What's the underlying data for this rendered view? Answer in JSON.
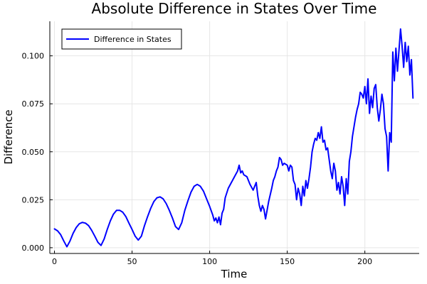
{
  "chart_data": {
    "type": "line",
    "title": "Absolute Difference in States Over Time",
    "xlabel": "Time",
    "ylabel": "Difference",
    "xlim": [
      -3,
      235
    ],
    "ylim": [
      -0.003,
      0.118
    ],
    "xticks": [
      0,
      50,
      100,
      150,
      200
    ],
    "xtick_labels": [
      "0",
      "50",
      "100",
      "150",
      "200"
    ],
    "yticks": [
      0.0,
      0.025,
      0.05,
      0.075,
      0.1
    ],
    "ytick_labels": [
      "0.000",
      "0.025",
      "0.050",
      "0.075",
      "0.100"
    ],
    "grid": true,
    "legend_position": "top-left",
    "series": [
      {
        "name": "Difference in States",
        "color": "#0000ff",
        "x": [
          0,
          2,
          4,
          6,
          8,
          10,
          12,
          14,
          16,
          18,
          20,
          22,
          24,
          26,
          28,
          30,
          32,
          34,
          36,
          38,
          40,
          42,
          44,
          46,
          48,
          50,
          52,
          54,
          56,
          58,
          60,
          62,
          64,
          66,
          68,
          70,
          72,
          74,
          76,
          78,
          80,
          82,
          84,
          86,
          88,
          90,
          92,
          94,
          96,
          98,
          100,
          102,
          103,
          104,
          105,
          106,
          107,
          108,
          109,
          110,
          112,
          114,
          116,
          118,
          119,
          120,
          121,
          122,
          124,
          126,
          128,
          129,
          130,
          131,
          132,
          133,
          134,
          135,
          136,
          138,
          140,
          141,
          142,
          143,
          144,
          145,
          146,
          147,
          148,
          150,
          151,
          152,
          153,
          154,
          155,
          156,
          157,
          158,
          159,
          160,
          161,
          162,
          163,
          164,
          165,
          166,
          167,
          168,
          169,
          170,
          171,
          172,
          173,
          174,
          175,
          176,
          177,
          178,
          179,
          180,
          181,
          182,
          183,
          184,
          185,
          186,
          187,
          188,
          189,
          190,
          191,
          192,
          193,
          194,
          195,
          196,
          197,
          198,
          199,
          200,
          201,
          202,
          203,
          204,
          205,
          206,
          207,
          208,
          209,
          210,
          211,
          212,
          213,
          214,
          215,
          216,
          217,
          218,
          219,
          220,
          221,
          222,
          223,
          224,
          225,
          226,
          227,
          228,
          229,
          230,
          231
        ],
        "y": [
          0.0098,
          0.0088,
          0.0068,
          0.0035,
          0.0005,
          0.0035,
          0.0075,
          0.0105,
          0.0125,
          0.0132,
          0.0128,
          0.0115,
          0.009,
          0.006,
          0.0028,
          0.0012,
          0.0045,
          0.0095,
          0.014,
          0.0175,
          0.0195,
          0.0195,
          0.0185,
          0.0162,
          0.0128,
          0.0095,
          0.006,
          0.004,
          0.006,
          0.0115,
          0.0162,
          0.0205,
          0.024,
          0.026,
          0.0265,
          0.0255,
          0.023,
          0.0195,
          0.0155,
          0.011,
          0.0095,
          0.013,
          0.0195,
          0.0245,
          0.029,
          0.032,
          0.033,
          0.032,
          0.0295,
          0.0255,
          0.0215,
          0.017,
          0.014,
          0.0155,
          0.013,
          0.016,
          0.012,
          0.018,
          0.02,
          0.026,
          0.031,
          0.034,
          0.037,
          0.04,
          0.043,
          0.039,
          0.04,
          0.038,
          0.037,
          0.033,
          0.03,
          0.032,
          0.034,
          0.027,
          0.022,
          0.019,
          0.022,
          0.02,
          0.015,
          0.024,
          0.031,
          0.035,
          0.037,
          0.04,
          0.042,
          0.047,
          0.046,
          0.043,
          0.044,
          0.043,
          0.04,
          0.043,
          0.042,
          0.035,
          0.033,
          0.025,
          0.031,
          0.028,
          0.022,
          0.032,
          0.027,
          0.035,
          0.031,
          0.036,
          0.042,
          0.05,
          0.054,
          0.057,
          0.056,
          0.06,
          0.057,
          0.063,
          0.055,
          0.056,
          0.051,
          0.052,
          0.046,
          0.04,
          0.036,
          0.044,
          0.04,
          0.03,
          0.034,
          0.028,
          0.037,
          0.032,
          0.022,
          0.036,
          0.028,
          0.045,
          0.05,
          0.058,
          0.063,
          0.068,
          0.072,
          0.075,
          0.081,
          0.08,
          0.078,
          0.084,
          0.075,
          0.088,
          0.07,
          0.079,
          0.073,
          0.083,
          0.085,
          0.073,
          0.066,
          0.072,
          0.08,
          0.075,
          0.062,
          0.058,
          0.04,
          0.06,
          0.055,
          0.102,
          0.087,
          0.104,
          0.092,
          0.103,
          0.114,
          0.105,
          0.094,
          0.107,
          0.097,
          0.105,
          0.09,
          0.098,
          0.078
        ]
      }
    ]
  }
}
